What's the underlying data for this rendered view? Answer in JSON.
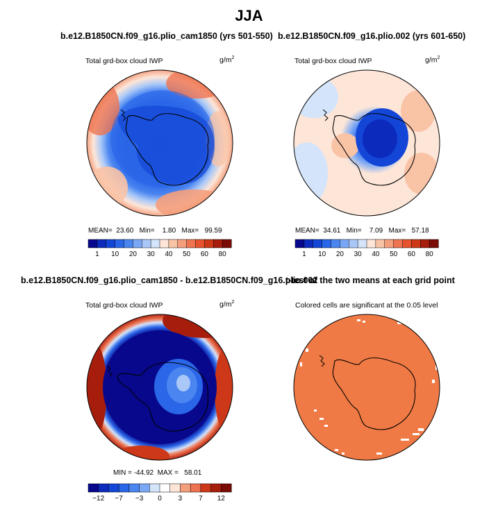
{
  "page": {
    "title": "JJA",
    "panel_top_left_title": "b.e12.B1850CN.f09_g16.plio_cam1850 (yrs 501-550)",
    "panel_top_right_title": "b.e12.B1850CN.f09_g16.plio.002 (yrs 601-650)",
    "panel_bottom_left_title": "b.e12.B1850CN.f09_g16.plio_cam1850 - b.e12.B1850CN.f09_g16.plio.002",
    "panel_bottom_right_title": "t-test of the two means at each grid point"
  },
  "panels": {
    "top_left": {
      "variable_label": "Total grd-box cloud IWP",
      "units_base": "g/m",
      "units_exp": "2",
      "stats": "MEAN=  23.60   Min=    1.80   Max=   99.59"
    },
    "top_right": {
      "variable_label": "Total grd-box cloud IWP",
      "units_base": "g/m",
      "units_exp": "2",
      "stats": "MEAN=  34.61   Min=    7.09   Max=   57.18"
    },
    "bottom_left": {
      "variable_label": "Total grd-box cloud IWP",
      "units_base": "g/m",
      "units_exp": "2",
      "stats": "MIN = -44.92  MAX =   58.01"
    },
    "bottom_right": {
      "variable_label": "Colored cells are significant at the 0.05 level"
    }
  },
  "chart_data": [
    {
      "type": "heatmap",
      "title": "b.e12.B1850CN.f09_g16.plio_cam1850 (yrs 501-550)",
      "variable": "Total grd-box cloud IWP",
      "units": "g/m^2",
      "projection": "south polar stereographic",
      "stats": {
        "mean": 23.6,
        "min": 1.8,
        "max": 99.59
      },
      "colorbar_levels": [
        1,
        5,
        10,
        15,
        20,
        25,
        30,
        35,
        40,
        45,
        50,
        55,
        60,
        70,
        80
      ],
      "colorbar_labels": [
        "1",
        "10",
        "20",
        "30",
        "40",
        "50",
        "60",
        "80"
      ],
      "colors": [
        "#08088c",
        "#0c2bbd",
        "#1346d6",
        "#2a66e8",
        "#4a85f0",
        "#7aa8f5",
        "#a9c8f8",
        "#d4e4fb",
        "#fde6d8",
        "#f9c3a6",
        "#f49e7c",
        "#ee7451",
        "#e5532f",
        "#cc3818",
        "#a61d0c",
        "#7a0b05"
      ]
    },
    {
      "type": "heatmap",
      "title": "b.e12.B1850CN.f09_g16.plio.002 (yrs 601-650)",
      "variable": "Total grd-box cloud IWP",
      "units": "g/m^2",
      "projection": "south polar stereographic",
      "stats": {
        "mean": 34.61,
        "min": 7.09,
        "max": 57.18
      },
      "colorbar_levels": [
        1,
        5,
        10,
        15,
        20,
        25,
        30,
        35,
        40,
        45,
        50,
        55,
        60,
        70,
        80
      ],
      "colorbar_labels": [
        "1",
        "10",
        "20",
        "30",
        "40",
        "50",
        "60",
        "80"
      ],
      "colors": [
        "#08088c",
        "#0c2bbd",
        "#1346d6",
        "#2a66e8",
        "#4a85f0",
        "#7aa8f5",
        "#a9c8f8",
        "#d4e4fb",
        "#fde6d8",
        "#f9c3a6",
        "#f49e7c",
        "#ee7451",
        "#e5532f",
        "#cc3818",
        "#a61d0c",
        "#7a0b05"
      ]
    },
    {
      "type": "heatmap",
      "title": "b.e12.B1850CN.f09_g16.plio_cam1850 - b.e12.B1850CN.f09_g16.plio.002",
      "variable": "Total grd-box cloud IWP",
      "units": "g/m^2",
      "projection": "south polar stereographic",
      "stats": {
        "min": -44.92,
        "max": 58.01
      },
      "colorbar_levels": [
        -12,
        -10,
        -7,
        -5,
        -3,
        -1,
        0,
        1,
        3,
        5,
        7,
        10,
        12
      ],
      "colorbar_labels": [
        "-12",
        "-7",
        "-3",
        "0",
        "3",
        "7",
        "12"
      ],
      "colors": [
        "#08088c",
        "#0c2bbd",
        "#1346d6",
        "#2a66e8",
        "#4a85f0",
        "#7aa8f5",
        "#d4e4fb",
        "#ffffff",
        "#fde6d8",
        "#f49e7c",
        "#ee7451",
        "#cc3818",
        "#a61d0c",
        "#7a0b05"
      ]
    },
    {
      "type": "heatmap",
      "title": "t-test of the two means at each grid point",
      "variable": "Colored cells are significant at the 0.05 level",
      "projection": "south polar stereographic",
      "significance_level": 0.05,
      "significant_color": "#f07a45"
    }
  ],
  "colors": {
    "background": "#ffffff",
    "coast": "#000000",
    "significant": "#f07a45"
  }
}
